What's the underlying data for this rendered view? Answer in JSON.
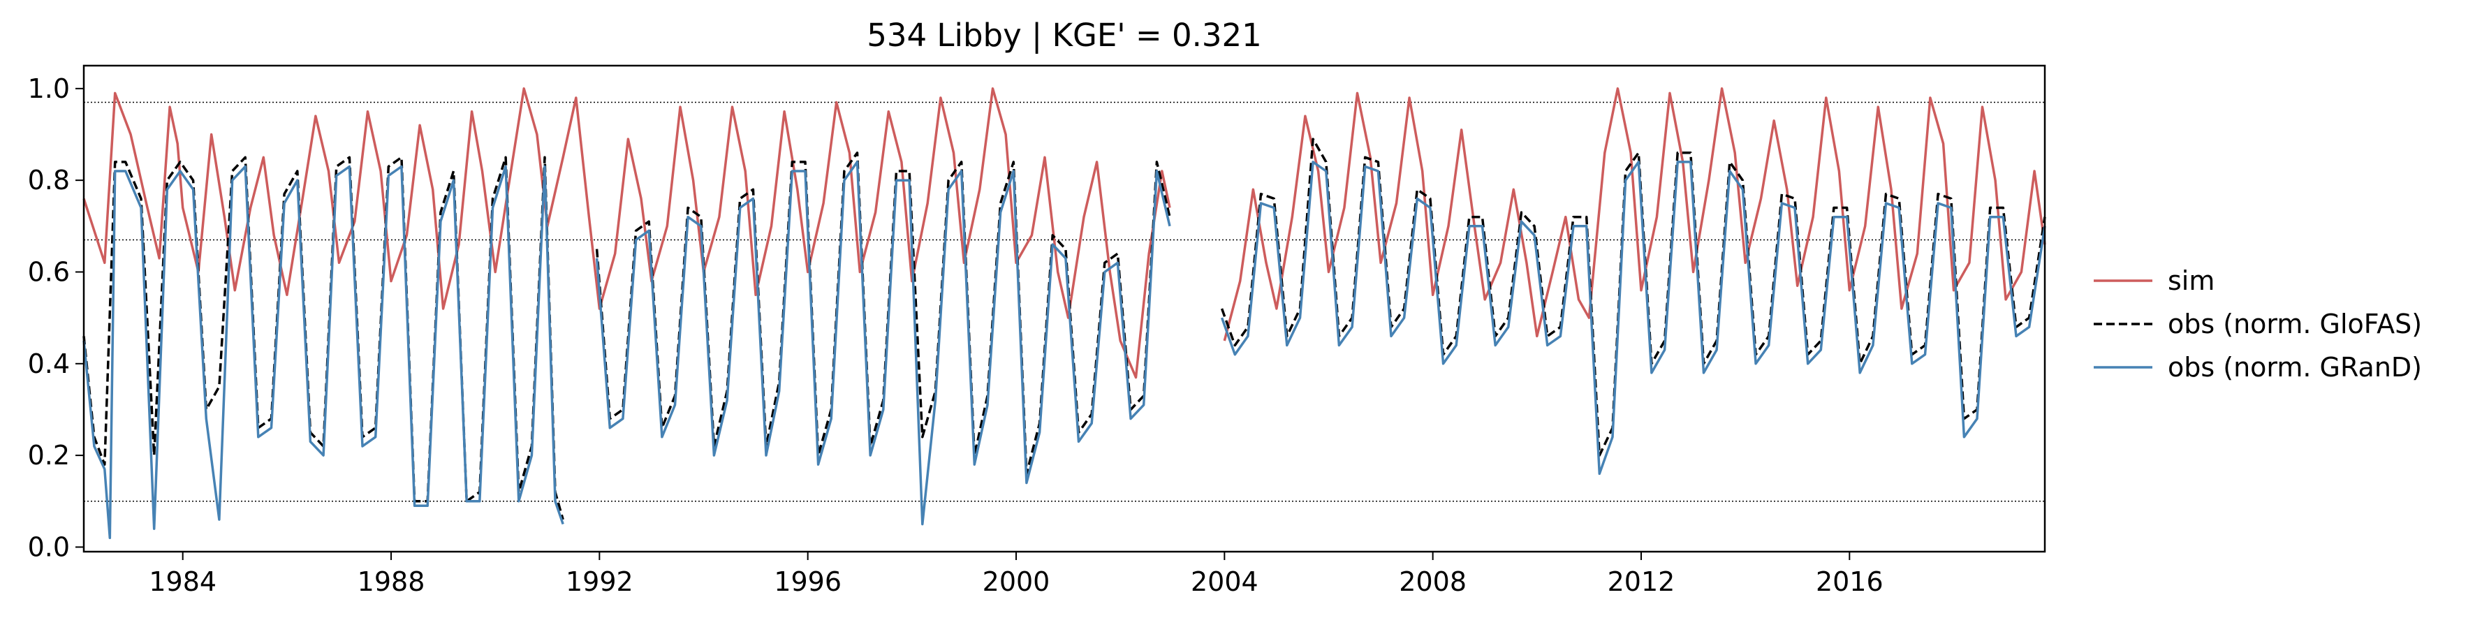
{
  "chart_data": {
    "type": "line",
    "title": "534  Libby | KGE' = 0.321",
    "xlabel": "",
    "ylabel": "",
    "xlim": [
      1982.1,
      2019.75
    ],
    "ylim": [
      -0.01,
      1.05
    ],
    "xticks": [
      1984,
      1988,
      1992,
      1996,
      2000,
      2004,
      2008,
      2012,
      2016
    ],
    "yticks": [
      0.0,
      0.2,
      0.4,
      0.6,
      0.8,
      1.0
    ],
    "ytick_labels": [
      "0.0",
      "0.2",
      "0.4",
      "0.6",
      "0.8",
      "1.0"
    ],
    "reference_lines": [
      0.97,
      0.67,
      0.1
    ],
    "grid": false,
    "legend_position": "outside right",
    "series": [
      {
        "name": "sim",
        "color": "#cd5c5c",
        "style": "solid",
        "x": [
          1982.1,
          1982.5,
          1982.7,
          1983.0,
          1983.3,
          1983.55,
          1983.75,
          1983.9,
          1984.0,
          1984.3,
          1984.55,
          1984.8,
          1985.0,
          1985.3,
          1985.55,
          1985.75,
          1986.0,
          1986.3,
          1986.55,
          1986.8,
          1987.0,
          1987.3,
          1987.55,
          1987.8,
          1988.0,
          1988.3,
          1988.55,
          1988.8,
          1989.0,
          1989.3,
          1989.55,
          1989.75,
          1990.0,
          1990.3,
          1990.55,
          1990.8,
          1991.0,
          1991.3,
          1991.55,
          1991.8,
          1992.0,
          1992.3,
          1992.55,
          1992.8,
          1993.0,
          1993.3,
          1993.55,
          1993.8,
          1994.0,
          1994.3,
          1994.55,
          1994.8,
          1995.0,
          1995.3,
          1995.55,
          1995.8,
          1996.0,
          1996.3,
          1996.55,
          1996.8,
          1997.0,
          1997.3,
          1997.55,
          1997.8,
          1998.0,
          1998.3,
          1998.55,
          1998.8,
          1999.0,
          1999.3,
          1999.55,
          1999.8,
          2000.0,
          2000.3,
          2000.55,
          2000.8,
          2001.0,
          2001.3,
          2001.55,
          2001.8,
          2002.0,
          2002.3,
          2002.55,
          2002.8,
          2002.95,
          null,
          2004.0,
          2004.3,
          2004.55,
          2004.8,
          2005.0,
          2005.3,
          2005.55,
          2005.8,
          2006.0,
          2006.3,
          2006.55,
          2006.8,
          2007.0,
          2007.3,
          2007.55,
          2007.8,
          2008.0,
          2008.3,
          2008.55,
          2008.8,
          2009.0,
          2009.3,
          2009.55,
          2009.8,
          2010.0,
          2010.3,
          2010.55,
          2010.8,
          2011.0,
          2011.3,
          2011.55,
          2011.8,
          2012.0,
          2012.3,
          2012.55,
          2012.8,
          2013.0,
          2013.3,
          2013.55,
          2013.8,
          2014.0,
          2014.3,
          2014.55,
          2014.8,
          2015.0,
          2015.3,
          2015.55,
          2015.8,
          2016.0,
          2016.3,
          2016.55,
          2016.8,
          2017.0,
          2017.3,
          2017.55,
          2017.8,
          2018.0,
          2018.3,
          2018.55,
          2018.8,
          2019.0,
          2019.3,
          2019.55,
          2019.75
        ],
        "y": [
          0.76,
          0.62,
          0.99,
          0.9,
          0.75,
          0.63,
          0.96,
          0.88,
          0.74,
          0.6,
          0.9,
          0.72,
          0.56,
          0.74,
          0.85,
          0.68,
          0.55,
          0.76,
          0.94,
          0.82,
          0.62,
          0.71,
          0.95,
          0.82,
          0.58,
          0.68,
          0.92,
          0.78,
          0.52,
          0.66,
          0.95,
          0.82,
          0.6,
          0.82,
          1.0,
          0.9,
          0.7,
          0.85,
          0.98,
          0.72,
          0.52,
          0.64,
          0.89,
          0.76,
          0.58,
          0.7,
          0.96,
          0.8,
          0.6,
          0.72,
          0.96,
          0.82,
          0.55,
          0.7,
          0.95,
          0.78,
          0.6,
          0.75,
          0.97,
          0.86,
          0.6,
          0.73,
          0.95,
          0.84,
          0.58,
          0.75,
          0.98,
          0.86,
          0.62,
          0.78,
          1.0,
          0.9,
          0.62,
          0.68,
          0.85,
          0.6,
          0.5,
          0.72,
          0.84,
          0.6,
          0.45,
          0.37,
          0.64,
          0.82,
          0.74,
          null,
          0.45,
          0.58,
          0.78,
          0.62,
          0.52,
          0.72,
          0.94,
          0.82,
          0.6,
          0.74,
          0.99,
          0.85,
          0.62,
          0.75,
          0.98,
          0.82,
          0.55,
          0.7,
          0.91,
          0.7,
          0.54,
          0.62,
          0.78,
          0.62,
          0.46,
          0.6,
          0.72,
          0.54,
          0.5,
          0.86,
          1.0,
          0.86,
          0.56,
          0.72,
          0.99,
          0.84,
          0.6,
          0.8,
          1.0,
          0.86,
          0.62,
          0.76,
          0.93,
          0.78,
          0.57,
          0.72,
          0.98,
          0.82,
          0.56,
          0.7,
          0.96,
          0.78,
          0.52,
          0.64,
          0.98,
          0.88,
          0.56,
          0.62,
          0.96,
          0.8,
          0.54,
          0.6,
          0.82,
          0.66
        ]
      },
      {
        "name": "obs (norm. GloFAS)",
        "color": "#000000",
        "style": "dashed",
        "x": [
          1982.1,
          1982.3,
          1982.5,
          1982.7,
          1982.9,
          1983.2,
          1983.45,
          1983.7,
          1983.95,
          1984.2,
          1984.45,
          1984.7,
          1984.95,
          1985.2,
          1985.45,
          1985.7,
          1985.95,
          1986.2,
          1986.45,
          1986.7,
          1986.95,
          1987.2,
          1987.45,
          1987.7,
          1987.95,
          1988.2,
          1988.45,
          1988.7,
          1988.95,
          1989.2,
          1989.45,
          1989.7,
          1989.95,
          1990.2,
          1990.45,
          1990.7,
          1990.95,
          1991.15,
          1991.3,
          null,
          1991.95,
          1992.2,
          1992.45,
          1992.7,
          1992.95,
          1993.2,
          1993.45,
          1993.7,
          1993.95,
          1994.2,
          1994.45,
          1994.7,
          1994.95,
          1995.2,
          1995.45,
          1995.7,
          1995.95,
          1996.2,
          1996.45,
          1996.7,
          1996.95,
          1997.2,
          1997.45,
          1997.7,
          1997.95,
          1998.2,
          1998.45,
          1998.7,
          1998.95,
          1999.2,
          1999.45,
          1999.7,
          1999.95,
          2000.2,
          2000.45,
          2000.7,
          2000.95,
          2001.2,
          2001.45,
          2001.7,
          2001.95,
          2002.2,
          2002.45,
          2002.7,
          2002.95,
          null,
          2003.95,
          2004.2,
          2004.45,
          2004.7,
          2004.95,
          2005.2,
          2005.45,
          2005.7,
          2005.95,
          2006.2,
          2006.45,
          2006.7,
          2006.95,
          2007.2,
          2007.45,
          2007.7,
          2007.95,
          2008.2,
          2008.45,
          2008.7,
          2008.95,
          2009.2,
          2009.45,
          2009.7,
          2009.95,
          2010.2,
          2010.45,
          2010.7,
          2010.95,
          2011.2,
          2011.45,
          2011.7,
          2011.95,
          2012.2,
          2012.45,
          2012.7,
          2012.95,
          2013.2,
          2013.45,
          2013.7,
          2013.95,
          2014.2,
          2014.45,
          2014.7,
          2014.95,
          2015.2,
          2015.45,
          2015.7,
          2015.95,
          2016.2,
          2016.45,
          2016.7,
          2016.95,
          2017.2,
          2017.45,
          2017.7,
          2017.95,
          2018.2,
          2018.45,
          2018.7,
          2018.95,
          2019.2,
          2019.45,
          2019.75
        ],
        "y": [
          0.46,
          0.24,
          0.18,
          0.84,
          0.84,
          0.76,
          0.2,
          0.8,
          0.84,
          0.8,
          0.3,
          0.35,
          0.82,
          0.85,
          0.26,
          0.28,
          0.77,
          0.82,
          0.25,
          0.22,
          0.83,
          0.85,
          0.24,
          0.26,
          0.83,
          0.85,
          0.1,
          0.1,
          0.73,
          0.82,
          0.1,
          0.12,
          0.76,
          0.85,
          0.12,
          0.22,
          0.85,
          0.12,
          0.06,
          null,
          0.65,
          0.28,
          0.3,
          0.69,
          0.71,
          0.26,
          0.33,
          0.74,
          0.72,
          0.22,
          0.34,
          0.76,
          0.78,
          0.22,
          0.36,
          0.84,
          0.84,
          0.2,
          0.3,
          0.82,
          0.86,
          0.22,
          0.32,
          0.82,
          0.82,
          0.24,
          0.34,
          0.8,
          0.84,
          0.2,
          0.33,
          0.75,
          0.84,
          0.16,
          0.27,
          0.68,
          0.65,
          0.25,
          0.29,
          0.62,
          0.64,
          0.3,
          0.33,
          0.84,
          0.72,
          null,
          0.52,
          0.44,
          0.48,
          0.77,
          0.76,
          0.46,
          0.52,
          0.89,
          0.84,
          0.46,
          0.5,
          0.85,
          0.84,
          0.48,
          0.52,
          0.78,
          0.76,
          0.42,
          0.46,
          0.72,
          0.72,
          0.46,
          0.5,
          0.73,
          0.7,
          0.46,
          0.48,
          0.72,
          0.72,
          0.2,
          0.26,
          0.82,
          0.86,
          0.4,
          0.45,
          0.86,
          0.86,
          0.4,
          0.45,
          0.84,
          0.8,
          0.42,
          0.46,
          0.77,
          0.76,
          0.42,
          0.45,
          0.74,
          0.74,
          0.4,
          0.46,
          0.77,
          0.76,
          0.42,
          0.44,
          0.77,
          0.76,
          0.28,
          0.3,
          0.74,
          0.74,
          0.48,
          0.5,
          0.72
        ]
      },
      {
        "name": "obs (norm. GRanD)",
        "color": "#4682b4",
        "style": "solid",
        "x": [
          1982.1,
          1982.3,
          1982.5,
          1982.6,
          1982.7,
          1982.9,
          1983.2,
          1983.45,
          1983.7,
          1983.95,
          1984.2,
          1984.45,
          1984.7,
          1984.95,
          1985.2,
          1985.45,
          1985.7,
          1985.95,
          1986.2,
          1986.45,
          1986.7,
          1986.95,
          1987.2,
          1987.45,
          1987.7,
          1987.95,
          1988.2,
          1988.45,
          1988.7,
          1988.95,
          1989.2,
          1989.45,
          1989.7,
          1989.95,
          1990.2,
          1990.45,
          1990.7,
          1990.95,
          1991.15,
          1991.3,
          null,
          1991.95,
          1992.2,
          1992.45,
          1992.7,
          1992.95,
          1993.2,
          1993.45,
          1993.7,
          1993.95,
          1994.2,
          1994.45,
          1994.7,
          1994.95,
          1995.2,
          1995.45,
          1995.7,
          1995.95,
          1996.2,
          1996.45,
          1996.7,
          1996.95,
          1997.2,
          1997.45,
          1997.7,
          1997.95,
          1998.2,
          1998.45,
          1998.7,
          1998.95,
          1999.2,
          1999.45,
          1999.7,
          1999.95,
          2000.2,
          2000.45,
          2000.7,
          2000.95,
          2001.2,
          2001.45,
          2001.7,
          2001.95,
          2002.2,
          2002.45,
          2002.7,
          2002.95,
          null,
          2003.95,
          2004.2,
          2004.45,
          2004.7,
          2004.95,
          2005.2,
          2005.45,
          2005.7,
          2005.95,
          2006.2,
          2006.45,
          2006.7,
          2006.95,
          2007.2,
          2007.45,
          2007.7,
          2007.95,
          2008.2,
          2008.45,
          2008.7,
          2008.95,
          2009.2,
          2009.45,
          2009.7,
          2009.95,
          2010.2,
          2010.45,
          2010.7,
          2010.95,
          2011.2,
          2011.45,
          2011.7,
          2011.95,
          2012.2,
          2012.45,
          2012.7,
          2012.95,
          2013.2,
          2013.45,
          2013.7,
          2013.95,
          2014.2,
          2014.45,
          2014.7,
          2014.95,
          2015.2,
          2015.45,
          2015.7,
          2015.95,
          2016.2,
          2016.45,
          2016.7,
          2016.95,
          2017.2,
          2017.45,
          2017.7,
          2017.95,
          2018.2,
          2018.45,
          2018.7,
          2018.95,
          2019.2,
          2019.45,
          2019.75
        ],
        "y": [
          0.45,
          0.22,
          0.17,
          0.02,
          0.82,
          0.82,
          0.74,
          0.04,
          0.78,
          0.82,
          0.78,
          0.28,
          0.06,
          0.8,
          0.83,
          0.24,
          0.26,
          0.75,
          0.8,
          0.23,
          0.2,
          0.81,
          0.83,
          0.22,
          0.24,
          0.81,
          0.83,
          0.09,
          0.09,
          0.71,
          0.8,
          0.1,
          0.1,
          0.74,
          0.83,
          0.1,
          0.2,
          0.83,
          0.1,
          0.05,
          null,
          0.63,
          0.26,
          0.28,
          0.67,
          0.69,
          0.24,
          0.31,
          0.72,
          0.7,
          0.2,
          0.32,
          0.74,
          0.76,
          0.2,
          0.34,
          0.82,
          0.82,
          0.18,
          0.28,
          0.8,
          0.84,
          0.2,
          0.3,
          0.8,
          0.8,
          0.05,
          0.32,
          0.78,
          0.82,
          0.18,
          0.31,
          0.73,
          0.82,
          0.14,
          0.25,
          0.66,
          0.63,
          0.23,
          0.27,
          0.6,
          0.62,
          0.28,
          0.31,
          0.82,
          0.7,
          null,
          0.5,
          0.42,
          0.46,
          0.75,
          0.74,
          0.44,
          0.5,
          0.84,
          0.82,
          0.44,
          0.48,
          0.83,
          0.82,
          0.46,
          0.5,
          0.76,
          0.74,
          0.4,
          0.44,
          0.7,
          0.7,
          0.44,
          0.48,
          0.71,
          0.68,
          0.44,
          0.46,
          0.7,
          0.7,
          0.16,
          0.24,
          0.8,
          0.84,
          0.38,
          0.43,
          0.84,
          0.84,
          0.38,
          0.43,
          0.82,
          0.78,
          0.4,
          0.44,
          0.75,
          0.74,
          0.4,
          0.43,
          0.72,
          0.72,
          0.38,
          0.44,
          0.75,
          0.74,
          0.4,
          0.42,
          0.75,
          0.74,
          0.24,
          0.28,
          0.72,
          0.72,
          0.46,
          0.48,
          0.7
        ]
      }
    ]
  }
}
